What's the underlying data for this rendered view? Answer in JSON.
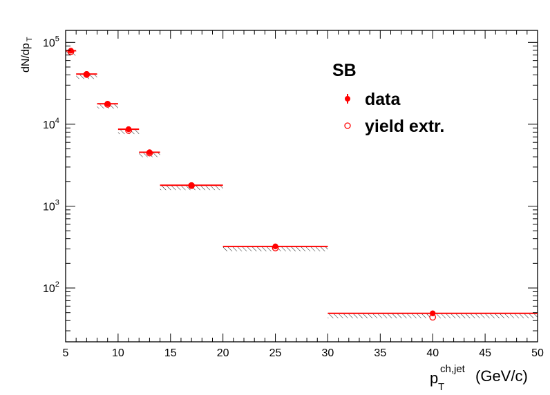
{
  "chart_data": {
    "type": "scatter",
    "title": "",
    "legend_title": "SB",
    "xlabel": {
      "main": "p",
      "sub": "T",
      "sup": "ch,jet",
      "unit": "(GeV/c)"
    },
    "ylabel": {
      "main": "dN/dp",
      "sub": "T"
    },
    "xlim": [
      5,
      50
    ],
    "ylim": [
      22,
      140000
    ],
    "yscale": "log",
    "x_ticks": [
      "5",
      "10",
      "15",
      "20",
      "25",
      "30",
      "35",
      "40",
      "45",
      "50"
    ],
    "y_ticks": [
      {
        "base": "10",
        "exp": "2"
      },
      {
        "base": "10",
        "exp": "3"
      },
      {
        "base": "10",
        "exp": "4"
      },
      {
        "base": "10",
        "exp": "5"
      }
    ],
    "grid": false,
    "legend_position": "top-right",
    "colors": {
      "series": "#ff0000",
      "axis": "#000000",
      "hatch": "#000000"
    },
    "series": [
      {
        "name": "data",
        "marker": "filled-circle",
        "x": [
          5.5,
          7,
          9,
          11,
          13,
          17,
          25,
          40
        ],
        "xerr": [
          0.5,
          1,
          1,
          1,
          1,
          3,
          5,
          10
        ],
        "y": [
          79000,
          41000,
          17800,
          8700,
          4550,
          1800,
          322,
          49
        ],
        "yerr": [
          3000,
          1500,
          700,
          400,
          200,
          80,
          15,
          4
        ]
      },
      {
        "name": "yield extr.",
        "marker": "open-circle",
        "x": [
          5.5,
          7,
          9,
          11,
          13,
          17,
          25,
          40
        ],
        "y": [
          77000,
          40500,
          17500,
          8400,
          4450,
          1780,
          308,
          44
        ],
        "sys_band": "hatched-below"
      }
    ]
  }
}
